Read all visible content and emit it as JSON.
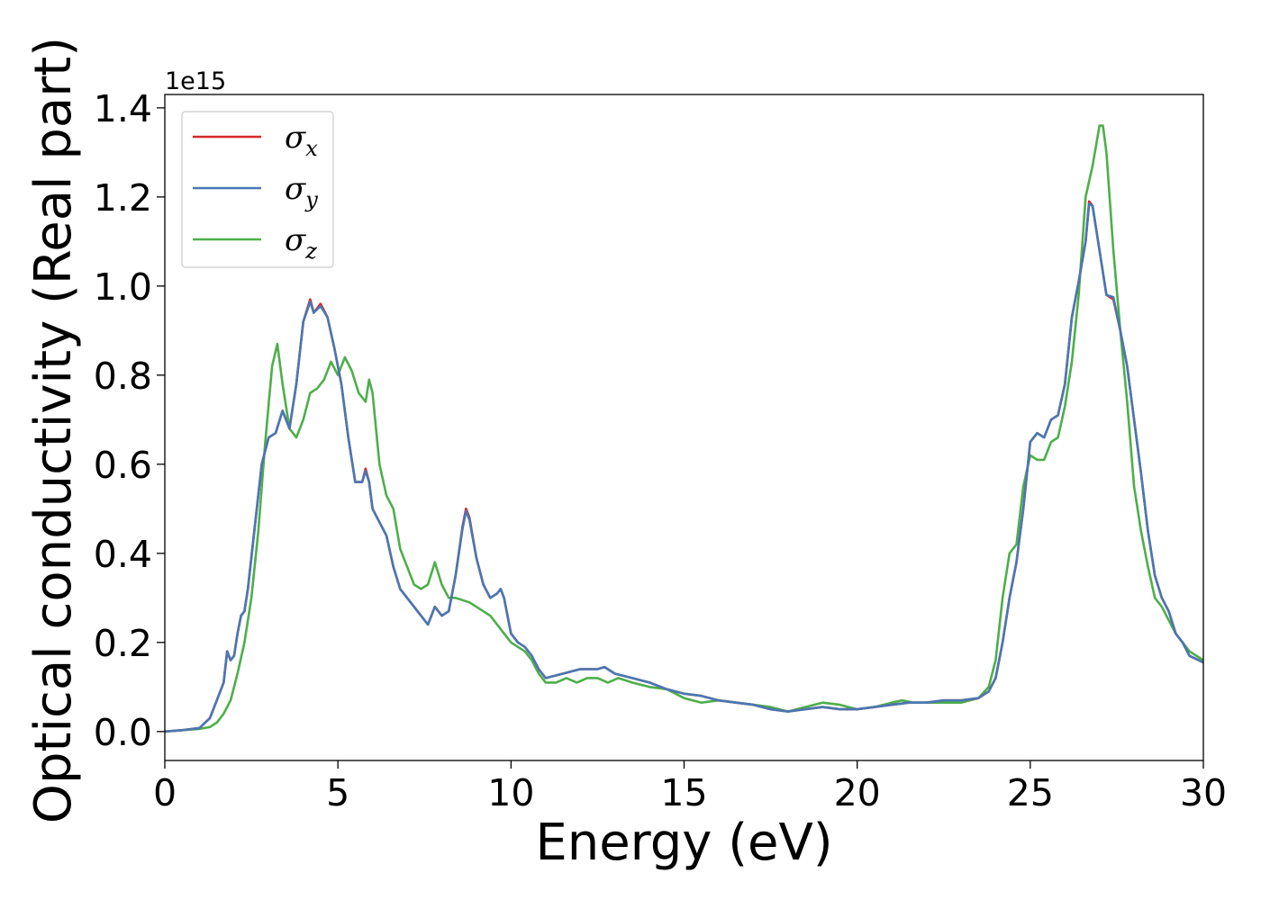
{
  "chart_data": {
    "type": "line",
    "xlabel": "Energy (eV)",
    "ylabel": "Optical conductivity (Real part)",
    "y_offset_text": "1e15",
    "xlim": [
      0,
      30
    ],
    "ylim": [
      -0.065,
      1.43
    ],
    "y_scale": 1000000000000000.0,
    "x_ticks": [
      0,
      5,
      10,
      15,
      20,
      25,
      30
    ],
    "x_tick_labels": [
      "0",
      "5",
      "10",
      "15",
      "20",
      "25",
      "30"
    ],
    "y_ticks": [
      0.0,
      0.2,
      0.4,
      0.6,
      0.8,
      1.0,
      1.2,
      1.4
    ],
    "y_tick_labels": [
      "0.0",
      "0.2",
      "0.4",
      "0.6",
      "0.8",
      "1.0",
      "1.2",
      "1.4"
    ],
    "grid": false,
    "legend_position": "upper-left",
    "series": [
      {
        "name": "σx",
        "label_base": "σ",
        "label_sub": "x",
        "color": "#d62728",
        "x": [
          0,
          0.5,
          1.0,
          1.3,
          1.5,
          1.7,
          1.8,
          1.9,
          2.0,
          2.1,
          2.2,
          2.3,
          2.4,
          2.6,
          2.8,
          3.0,
          3.2,
          3.4,
          3.6,
          3.8,
          4.0,
          4.2,
          4.3,
          4.5,
          4.7,
          4.9,
          5.1,
          5.3,
          5.5,
          5.7,
          5.8,
          5.9,
          6.0,
          6.2,
          6.4,
          6.6,
          6.8,
          7.0,
          7.2,
          7.4,
          7.6,
          7.8,
          8.0,
          8.2,
          8.4,
          8.6,
          8.7,
          8.8,
          9.0,
          9.2,
          9.4,
          9.6,
          9.7,
          9.8,
          10.0,
          10.2,
          10.4,
          10.6,
          10.8,
          11.0,
          11.5,
          12.0,
          12.5,
          12.7,
          13.0,
          13.5,
          14.0,
          14.5,
          15.0,
          15.5,
          16.0,
          16.5,
          17.0,
          17.5,
          18.0,
          18.5,
          19.0,
          19.5,
          20.0,
          20.5,
          21.0,
          21.5,
          22.0,
          22.5,
          23.0,
          23.5,
          23.8,
          24.0,
          24.2,
          24.4,
          24.6,
          24.8,
          25.0,
          25.2,
          25.4,
          25.6,
          25.8,
          26.0,
          26.2,
          26.4,
          26.6,
          26.7,
          26.8,
          27.0,
          27.2,
          27.4,
          27.6,
          27.8,
          28.0,
          28.2,
          28.4,
          28.6,
          28.8,
          29.0,
          29.2,
          29.4,
          29.6,
          30.0
        ],
        "values": [
          0,
          0.003,
          0.008,
          0.03,
          0.07,
          0.11,
          0.18,
          0.16,
          0.17,
          0.22,
          0.26,
          0.27,
          0.32,
          0.46,
          0.6,
          0.66,
          0.67,
          0.72,
          0.68,
          0.78,
          0.92,
          0.97,
          0.94,
          0.96,
          0.93,
          0.86,
          0.78,
          0.66,
          0.56,
          0.56,
          0.59,
          0.56,
          0.5,
          0.47,
          0.44,
          0.37,
          0.32,
          0.3,
          0.28,
          0.26,
          0.24,
          0.28,
          0.26,
          0.27,
          0.35,
          0.46,
          0.5,
          0.48,
          0.39,
          0.33,
          0.3,
          0.31,
          0.32,
          0.3,
          0.22,
          0.2,
          0.19,
          0.17,
          0.14,
          0.12,
          0.13,
          0.14,
          0.14,
          0.145,
          0.13,
          0.12,
          0.11,
          0.095,
          0.085,
          0.08,
          0.07,
          0.065,
          0.06,
          0.05,
          0.045,
          0.05,
          0.055,
          0.05,
          0.05,
          0.055,
          0.06,
          0.065,
          0.065,
          0.07,
          0.07,
          0.075,
          0.09,
          0.12,
          0.2,
          0.3,
          0.38,
          0.5,
          0.65,
          0.67,
          0.66,
          0.7,
          0.71,
          0.78,
          0.93,
          1.01,
          1.1,
          1.19,
          1.18,
          1.08,
          0.98,
          0.97,
          0.9,
          0.82,
          0.7,
          0.58,
          0.45,
          0.35,
          0.3,
          0.27,
          0.22,
          0.2,
          0.17,
          0.155
        ]
      },
      {
        "name": "σy",
        "label_base": "σ",
        "label_sub": "y",
        "color": "#4878b4",
        "x": [
          0,
          0.5,
          1.0,
          1.3,
          1.5,
          1.7,
          1.8,
          1.9,
          2.0,
          2.1,
          2.2,
          2.3,
          2.4,
          2.6,
          2.8,
          3.0,
          3.2,
          3.4,
          3.6,
          3.8,
          4.0,
          4.2,
          4.3,
          4.5,
          4.7,
          4.9,
          5.1,
          5.3,
          5.5,
          5.7,
          5.8,
          5.9,
          6.0,
          6.2,
          6.4,
          6.6,
          6.8,
          7.0,
          7.2,
          7.4,
          7.6,
          7.8,
          8.0,
          8.2,
          8.4,
          8.6,
          8.7,
          8.8,
          9.0,
          9.2,
          9.4,
          9.6,
          9.7,
          9.8,
          10.0,
          10.2,
          10.4,
          10.6,
          10.8,
          11.0,
          11.5,
          12.0,
          12.5,
          12.7,
          13.0,
          13.5,
          14.0,
          14.5,
          15.0,
          15.5,
          16.0,
          16.5,
          17.0,
          17.5,
          18.0,
          18.5,
          19.0,
          19.5,
          20.0,
          20.5,
          21.0,
          21.5,
          22.0,
          22.5,
          23.0,
          23.5,
          23.8,
          24.0,
          24.2,
          24.4,
          24.6,
          24.8,
          25.0,
          25.2,
          25.4,
          25.6,
          25.8,
          26.0,
          26.2,
          26.4,
          26.6,
          26.7,
          26.8,
          27.0,
          27.2,
          27.4,
          27.6,
          27.8,
          28.0,
          28.2,
          28.4,
          28.6,
          28.8,
          29.0,
          29.2,
          29.4,
          29.6,
          30.0
        ],
        "values": [
          0,
          0.003,
          0.008,
          0.03,
          0.07,
          0.11,
          0.18,
          0.16,
          0.17,
          0.22,
          0.26,
          0.27,
          0.32,
          0.46,
          0.6,
          0.66,
          0.67,
          0.72,
          0.68,
          0.78,
          0.92,
          0.965,
          0.94,
          0.955,
          0.93,
          0.86,
          0.78,
          0.66,
          0.56,
          0.56,
          0.585,
          0.56,
          0.5,
          0.47,
          0.44,
          0.37,
          0.32,
          0.3,
          0.28,
          0.26,
          0.24,
          0.28,
          0.26,
          0.27,
          0.35,
          0.455,
          0.495,
          0.475,
          0.39,
          0.33,
          0.3,
          0.31,
          0.32,
          0.3,
          0.22,
          0.2,
          0.19,
          0.17,
          0.14,
          0.12,
          0.13,
          0.14,
          0.14,
          0.145,
          0.13,
          0.12,
          0.11,
          0.095,
          0.085,
          0.08,
          0.07,
          0.065,
          0.06,
          0.05,
          0.045,
          0.05,
          0.055,
          0.05,
          0.05,
          0.055,
          0.06,
          0.065,
          0.065,
          0.07,
          0.07,
          0.075,
          0.09,
          0.12,
          0.2,
          0.3,
          0.38,
          0.5,
          0.65,
          0.67,
          0.66,
          0.7,
          0.71,
          0.78,
          0.93,
          1.01,
          1.1,
          1.185,
          1.18,
          1.08,
          0.98,
          0.975,
          0.9,
          0.82,
          0.7,
          0.58,
          0.45,
          0.35,
          0.3,
          0.27,
          0.22,
          0.2,
          0.17,
          0.155
        ]
      },
      {
        "name": "σz",
        "label_base": "σ",
        "label_sub": "z",
        "color": "#4daf4a",
        "x": [
          0,
          0.5,
          1.0,
          1.3,
          1.5,
          1.7,
          1.9,
          2.1,
          2.3,
          2.5,
          2.7,
          2.9,
          3.1,
          3.25,
          3.4,
          3.6,
          3.8,
          4.0,
          4.2,
          4.4,
          4.6,
          4.8,
          5.0,
          5.2,
          5.4,
          5.6,
          5.8,
          5.9,
          6.0,
          6.2,
          6.4,
          6.6,
          6.8,
          7.0,
          7.2,
          7.4,
          7.6,
          7.8,
          8.0,
          8.2,
          8.4,
          8.6,
          8.8,
          9.0,
          9.2,
          9.4,
          9.6,
          9.8,
          10.0,
          10.2,
          10.4,
          10.6,
          10.8,
          11.0,
          11.3,
          11.6,
          11.9,
          12.2,
          12.5,
          12.8,
          13.1,
          13.5,
          14.0,
          14.5,
          15.0,
          15.5,
          16.0,
          16.5,
          17.0,
          17.5,
          18.0,
          18.5,
          19.0,
          19.5,
          20.0,
          20.5,
          21.0,
          21.3,
          21.6,
          22.0,
          22.5,
          23.0,
          23.5,
          23.8,
          24.0,
          24.2,
          24.4,
          24.6,
          24.8,
          25.0,
          25.2,
          25.4,
          25.6,
          25.8,
          26.0,
          26.2,
          26.4,
          26.6,
          26.8,
          27.0,
          27.1,
          27.2,
          27.4,
          27.6,
          27.8,
          28.0,
          28.2,
          28.4,
          28.6,
          28.8,
          29.0,
          29.2,
          29.4,
          29.6,
          30.0
        ],
        "values": [
          0,
          0.003,
          0.006,
          0.01,
          0.02,
          0.04,
          0.07,
          0.13,
          0.2,
          0.3,
          0.45,
          0.65,
          0.82,
          0.87,
          0.78,
          0.68,
          0.66,
          0.7,
          0.76,
          0.77,
          0.79,
          0.83,
          0.8,
          0.84,
          0.81,
          0.76,
          0.74,
          0.79,
          0.76,
          0.6,
          0.53,
          0.5,
          0.41,
          0.37,
          0.33,
          0.32,
          0.33,
          0.38,
          0.33,
          0.3,
          0.3,
          0.295,
          0.29,
          0.28,
          0.27,
          0.26,
          0.24,
          0.22,
          0.2,
          0.19,
          0.18,
          0.16,
          0.13,
          0.11,
          0.11,
          0.12,
          0.11,
          0.12,
          0.12,
          0.11,
          0.12,
          0.11,
          0.1,
          0.095,
          0.075,
          0.065,
          0.07,
          0.065,
          0.06,
          0.055,
          0.045,
          0.055,
          0.065,
          0.06,
          0.05,
          0.055,
          0.065,
          0.07,
          0.065,
          0.065,
          0.065,
          0.065,
          0.075,
          0.1,
          0.16,
          0.3,
          0.4,
          0.42,
          0.55,
          0.62,
          0.61,
          0.61,
          0.65,
          0.66,
          0.73,
          0.83,
          0.98,
          1.2,
          1.27,
          1.36,
          1.36,
          1.3,
          1.08,
          0.9,
          0.74,
          0.55,
          0.45,
          0.37,
          0.3,
          0.28,
          0.25,
          0.22,
          0.2,
          0.18,
          0.16
        ]
      }
    ]
  }
}
